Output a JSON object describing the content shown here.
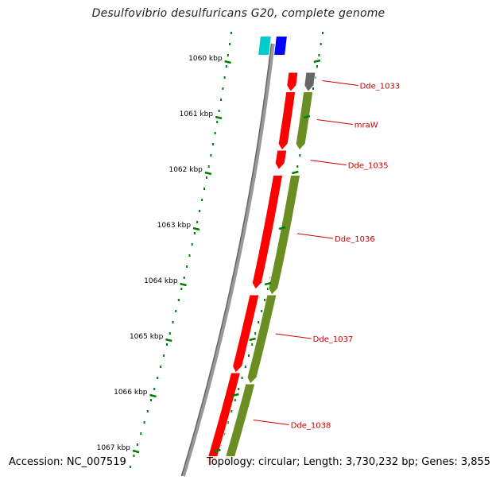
{
  "title": "Desulfovibrio desulfuricans G20, complete genome",
  "accession": "Accession: NC_007519",
  "topology": "Topology: circular; Length: 3,730,232 bp; Genes: 3,855",
  "colors": {
    "forward_gene": "#ff0000",
    "reverse_gene": "#6b8e23",
    "gene_label": "#cc0000",
    "axis": "#888888",
    "tick": "#008000",
    "cyan_feature": "#00cccc",
    "blue_feature": "#0000ff",
    "grey_feature": "#666666"
  },
  "ticks": [
    {
      "label": "1060 kbp",
      "kbp": 1060
    },
    {
      "label": "1061 kbp",
      "kbp": 1061
    },
    {
      "label": "1062 kbp",
      "kbp": 1062
    },
    {
      "label": "1063 kbp",
      "kbp": 1063
    },
    {
      "label": "1064 kbp",
      "kbp": 1064
    },
    {
      "label": "1065 kbp",
      "kbp": 1065
    },
    {
      "label": "1066 kbp",
      "kbp": 1066
    },
    {
      "label": "1067 kbp",
      "kbp": 1067
    }
  ],
  "features": [
    {
      "kind": "other",
      "color": "cyan_feature",
      "start_kbp": 1059.55,
      "end_kbp": 1059.9
    },
    {
      "kind": "other",
      "color": "blue_feature",
      "start_kbp": 1059.55,
      "end_kbp": 1059.9
    },
    {
      "kind": "gene",
      "label": "Dde_1033",
      "strand": "+",
      "start_kbp": 1060.2,
      "end_kbp": 1060.55
    },
    {
      "kind": "gene",
      "label": "Dde_1033",
      "strand": "-",
      "start_kbp": 1060.2,
      "end_kbp": 1060.55,
      "color": "grey_feature"
    },
    {
      "kind": "gene",
      "label": "mraW",
      "strand": "+",
      "start_kbp": 1060.55,
      "end_kbp": 1061.6
    },
    {
      "kind": "gene",
      "label": "mraW",
      "strand": "-",
      "start_kbp": 1060.55,
      "end_kbp": 1061.6
    },
    {
      "kind": "gene",
      "label": "Dde_1035",
      "strand": "+",
      "start_kbp": 1061.6,
      "end_kbp": 1061.95
    },
    {
      "kind": "gene",
      "label": "Dde_1036",
      "strand": "+",
      "start_kbp": 1062.05,
      "end_kbp": 1064.1
    },
    {
      "kind": "gene",
      "label": "Dde_1036",
      "strand": "-",
      "start_kbp": 1062.05,
      "end_kbp": 1064.2
    },
    {
      "kind": "gene",
      "label": "Dde_1037",
      "strand": "+",
      "start_kbp": 1064.2,
      "end_kbp": 1065.6
    },
    {
      "kind": "gene",
      "label": "Dde_1037",
      "strand": "-",
      "start_kbp": 1064.2,
      "end_kbp": 1065.8
    },
    {
      "kind": "gene",
      "label": "Dde_1038",
      "strand": "+",
      "start_kbp": 1065.6,
      "end_kbp": 1067.3
    },
    {
      "kind": "gene",
      "label": "Dde_1038",
      "strand": "-",
      "start_kbp": 1065.8,
      "end_kbp": 1067.3
    }
  ],
  "gene_labels": [
    {
      "text": "Dde_1033",
      "at_kbp": 1060.35
    },
    {
      "text": "mraW",
      "at_kbp": 1061.05
    },
    {
      "text": "Dde_1035",
      "at_kbp": 1061.78
    },
    {
      "text": "Dde_1036",
      "at_kbp": 1063.1
    },
    {
      "text": "Dde_1037",
      "at_kbp": 1064.9
    },
    {
      "text": "Dde_1038",
      "at_kbp": 1066.45
    }
  ]
}
